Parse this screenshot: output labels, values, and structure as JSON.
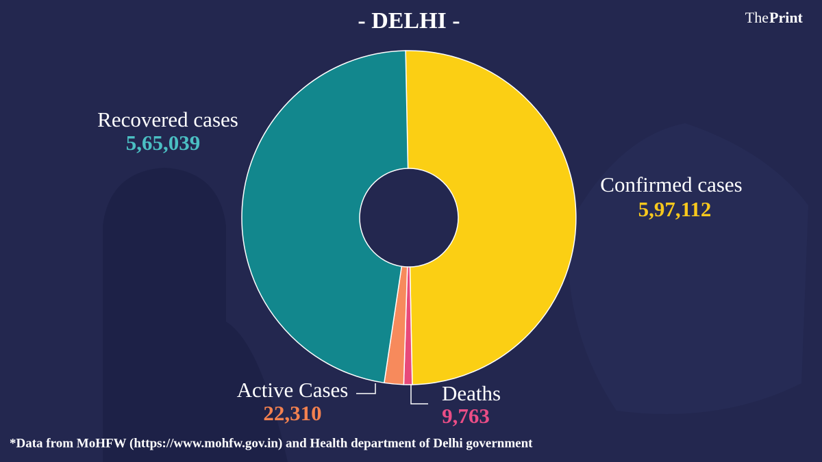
{
  "chart_data": {
    "type": "donut",
    "title": "- DELHI -",
    "brand_prefix": "The",
    "brand_name": "Print",
    "categories": [
      "Confirmed cases",
      "Deaths",
      "Active Cases",
      "Recovered cases"
    ],
    "values": [
      597112,
      9763,
      22310,
      565039
    ],
    "value_labels": [
      "5,97,112",
      "9,763",
      "22,310",
      "5,65,039"
    ],
    "colors": [
      "#fbcf14",
      "#e8497a",
      "#f78a5c",
      "#12878d"
    ],
    "label_colors": [
      "#f7c81d",
      "#ea4d86",
      "#f3814f",
      "#4bbfc3"
    ],
    "footnote": "*Data from MoHFW (https://www.mohfw.gov.in) and Health department of Delhi government"
  }
}
